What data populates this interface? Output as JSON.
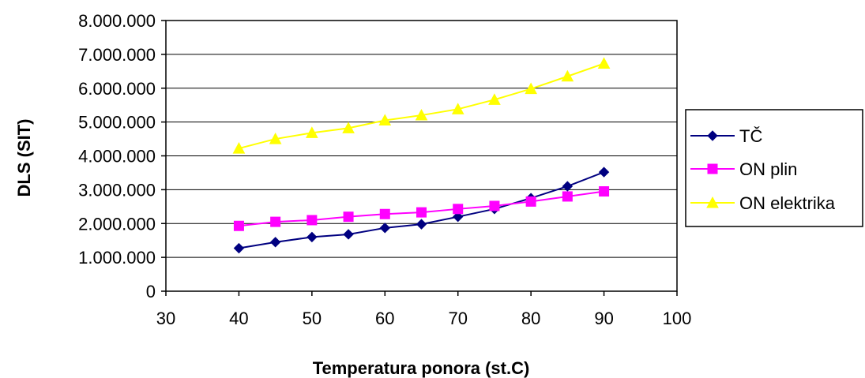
{
  "chart_data": {
    "type": "line",
    "title": "",
    "xlabel": "Temperatura ponora (st.C)",
    "ylabel": "DLS (SIT)",
    "x": [
      40,
      45,
      50,
      55,
      60,
      65,
      70,
      75,
      80,
      85,
      90
    ],
    "xlim": [
      30,
      100
    ],
    "xticks": [
      30,
      40,
      50,
      60,
      70,
      80,
      90,
      100
    ],
    "xtick_labels": [
      "30",
      "40",
      "50",
      "60",
      "70",
      "80",
      "90",
      "100"
    ],
    "ylim": [
      0,
      8000000
    ],
    "yticks": [
      0,
      1000000,
      2000000,
      3000000,
      4000000,
      5000000,
      6000000,
      7000000,
      8000000
    ],
    "ytick_labels": [
      "0",
      "1.000.000",
      "2.000.000",
      "3.000.000",
      "4.000.000",
      "5.000.000",
      "6.000.000",
      "7.000.000",
      "8.000.000"
    ],
    "grid": "horizontal major",
    "legend": "right",
    "series": [
      {
        "name": "TČ",
        "color": "#000080",
        "marker": "diamond",
        "values": [
          1270000,
          1450000,
          1600000,
          1680000,
          1870000,
          1980000,
          2200000,
          2430000,
          2750000,
          3100000,
          3520000
        ]
      },
      {
        "name": "ON plin",
        "color": "#FF00FF",
        "marker": "square",
        "values": [
          1930000,
          2050000,
          2100000,
          2200000,
          2280000,
          2330000,
          2430000,
          2520000,
          2650000,
          2800000,
          2950000
        ]
      },
      {
        "name": "ON elektrika",
        "color": "#FFFF00",
        "marker": "triangle",
        "values": [
          4220000,
          4500000,
          4680000,
          4820000,
          5050000,
          5200000,
          5380000,
          5660000,
          5980000,
          6350000,
          6730000
        ]
      }
    ]
  }
}
